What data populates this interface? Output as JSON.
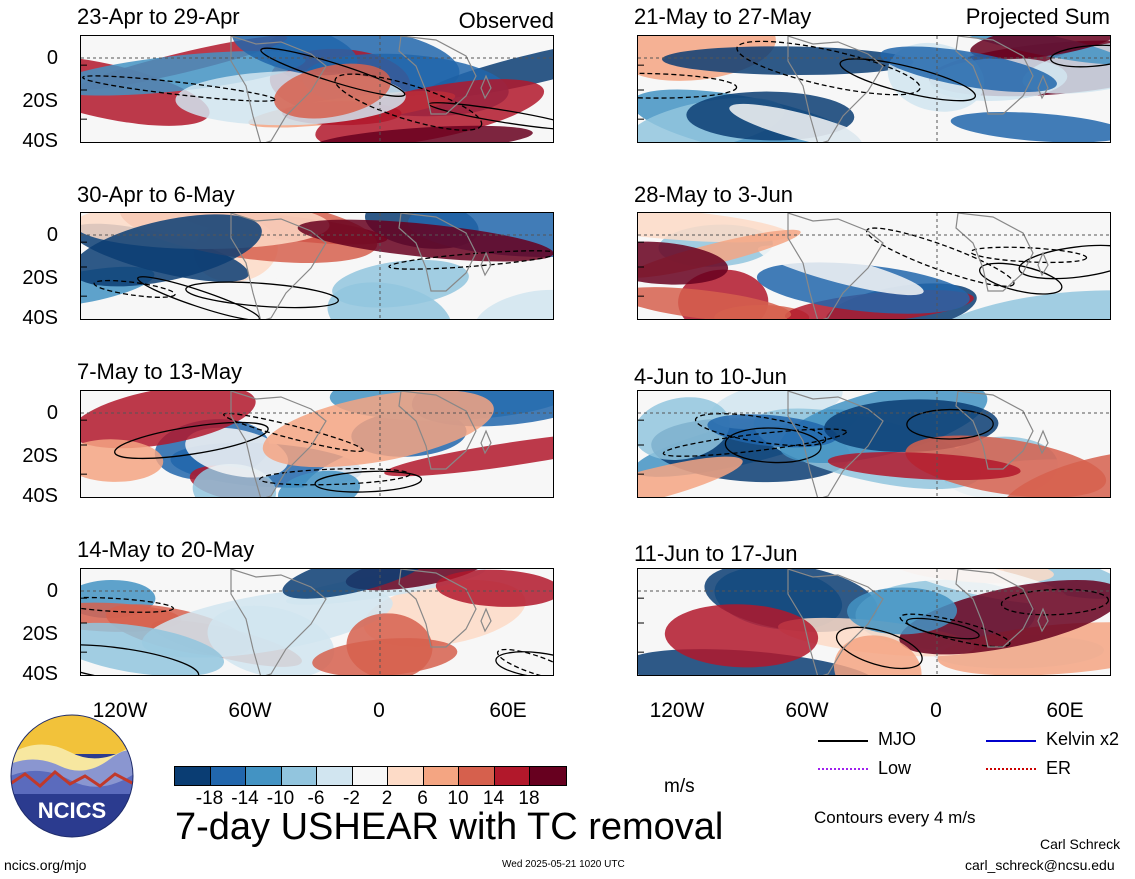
{
  "panels": [
    {
      "title": "23-Apr to 29-Apr",
      "tag": "Observed"
    },
    {
      "title": "21-May to 27-May",
      "tag": "Projected Sum"
    },
    {
      "title": "30-Apr to 6-May",
      "tag": ""
    },
    {
      "title": "28-May to 3-Jun",
      "tag": ""
    },
    {
      "title": "7-May to 13-May",
      "tag": ""
    },
    {
      "title": "4-Jun to 10-Jun",
      "tag": ""
    },
    {
      "title": "14-May to 20-May",
      "tag": ""
    },
    {
      "title": "11-Jun to 17-Jun",
      "tag": ""
    }
  ],
  "axes": {
    "y_ticks": [
      "0",
      "20S",
      "40S"
    ],
    "x_ticks": [
      "120W",
      "60W",
      "0",
      "60E"
    ]
  },
  "legend": {
    "items": [
      {
        "label": "MJO",
        "color": "#000000"
      },
      {
        "label": "Kelvin x2",
        "color": "#0000cc"
      },
      {
        "label": "Low",
        "color": "#a020f0"
      },
      {
        "label": "ER",
        "color": "#cc0000"
      }
    ],
    "contours_note": "Contours every 4 m/s"
  },
  "colorbar": {
    "labels": [
      "-18",
      "-14",
      "-10",
      "-6",
      "-2",
      "2",
      "6",
      "10",
      "14",
      "18"
    ],
    "units": "m/s",
    "colors": [
      "#0a3d73",
      "#2166ac",
      "#4393c3",
      "#92c5de",
      "#d1e5f0",
      "#f7f7f7",
      "#fddbc7",
      "#f4a582",
      "#d6604d",
      "#b2182b",
      "#67001f"
    ]
  },
  "main_title": "7-day USHEAR with TC removal",
  "logo_text": "NCICS",
  "footer": {
    "left": "ncics.org/mjo",
    "center": "Wed 2025-05-21 1020 UTC",
    "author": "Carl Schreck",
    "email": "carl_schreck@ncsu.edu"
  },
  "chart_data": {
    "type": "heatmap",
    "variable": "7-day USHEAR with TC removal",
    "units": "m/s",
    "lon_ticks": [
      "120W",
      "60W",
      "0",
      "60E"
    ],
    "lat_ticks": [
      "0",
      "20S",
      "40S"
    ],
    "lat_range": [
      -40,
      10
    ],
    "lon_range": [
      -150,
      90
    ],
    "color_levels": [
      -18,
      -14,
      -10,
      -6,
      -2,
      2,
      6,
      10,
      14,
      18
    ],
    "periods": [
      {
        "title": "23-Apr to 29-Apr",
        "kind": "Observed"
      },
      {
        "title": "30-Apr to 6-May",
        "kind": "Observed"
      },
      {
        "title": "7-May to 13-May",
        "kind": "Observed"
      },
      {
        "title": "14-May to 20-May",
        "kind": "Observed"
      },
      {
        "title": "21-May to 27-May",
        "kind": "Projected Sum"
      },
      {
        "title": "28-May to 3-Jun",
        "kind": "Projected Sum"
      },
      {
        "title": "4-Jun to 10-Jun",
        "kind": "Projected Sum"
      },
      {
        "title": "11-Jun to 17-Jun",
        "kind": "Projected Sum"
      }
    ],
    "contour_interval": 4
  }
}
